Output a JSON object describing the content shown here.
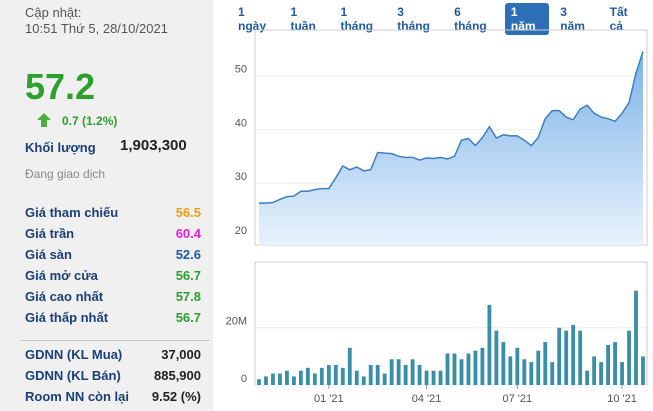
{
  "panel": {
    "updated_label": "Cập nhật:",
    "updated_time": "10:51 Thứ 5, 28/10/2021",
    "price": "57.2",
    "change": "0.7 (1.2%)",
    "volume_label": "Khối lượng",
    "volume": "1,903,300",
    "status": "Đang giao dịch",
    "prices": [
      {
        "label": "Giá tham chiếu",
        "value": "56.5",
        "color": "#f39c12"
      },
      {
        "label": "Giá trần",
        "value": "60.4",
        "color": "#e020e0"
      },
      {
        "label": "Giá sàn",
        "value": "52.6",
        "color": "#1f5aa6"
      },
      {
        "label": "Giá mở cửa",
        "value": "56.7",
        "color": "#2ca02c"
      },
      {
        "label": "Giá cao nhất",
        "value": "57.8",
        "color": "#2ca02c"
      },
      {
        "label": "Giá thấp nhất",
        "value": "56.7",
        "color": "#2ca02c"
      }
    ],
    "foreign": [
      {
        "label": "GDNN (KL Mua)",
        "value": "37,000"
      },
      {
        "label": "GDNN (KL Bán)",
        "value": "885,900"
      },
      {
        "label": "Room NN còn lại",
        "value": "9.52 (%)"
      }
    ]
  },
  "ranges": {
    "buttons": [
      "1 ngày",
      "1 tuần",
      "1 tháng",
      "3 tháng",
      "6 tháng",
      "1 năm",
      "3 năm",
      "Tất cả"
    ],
    "active": 5
  },
  "chart_data": [
    {
      "type": "area",
      "color": "#3d7fc1",
      "ylim": [
        18.5,
        58.5
      ],
      "yticks": [
        20,
        30,
        40,
        50
      ],
      "values": [
        26.3,
        26.3,
        26.4,
        27,
        27.5,
        27.6,
        28.5,
        28.5,
        28.8,
        29,
        29,
        31,
        33.2,
        32.5,
        33,
        32.3,
        32.5,
        35.7,
        35.6,
        35.5,
        35,
        34.8,
        34.8,
        34.3,
        34.7,
        34.6,
        34.8,
        34.5,
        35,
        38,
        38.3,
        37,
        38.5,
        40.5,
        38.4,
        39,
        38.8,
        38.8,
        38,
        37,
        38.5,
        42,
        43.5,
        43.5,
        42.3,
        41.8,
        43.8,
        44.5,
        43,
        42.3,
        42,
        41.5,
        43,
        45,
        50.5,
        54.5
      ]
    },
    {
      "type": "bar",
      "color": "#3a8fa8",
      "ylim": [
        0,
        43
      ],
      "yticks": [
        0,
        {
          "value": 20,
          "label": "20M"
        }
      ],
      "categories": [
        null,
        null,
        null,
        null,
        null,
        null,
        null,
        null,
        null,
        null,
        "01 '21",
        null,
        null,
        null,
        null,
        null,
        null,
        null,
        null,
        null,
        null,
        null,
        null,
        null,
        "04 '21",
        null,
        null,
        null,
        null,
        null,
        null,
        null,
        null,
        null,
        null,
        null,
        null,
        "07 '21",
        null,
        null,
        null,
        null,
        null,
        null,
        null,
        null,
        null,
        null,
        null,
        null,
        null,
        null,
        "10 '21",
        null,
        null,
        null
      ],
      "values": [
        2,
        3,
        4,
        4,
        5,
        3,
        5,
        6,
        4,
        6,
        7,
        7,
        6,
        13,
        5,
        3,
        7,
        7,
        4,
        9,
        9,
        7,
        9,
        7,
        5,
        5,
        5,
        11,
        11,
        9,
        11,
        12,
        13,
        28,
        19,
        15,
        10,
        13,
        9,
        8,
        12,
        15,
        8,
        20,
        19,
        21,
        19,
        5,
        10,
        8,
        14,
        15,
        8,
        19,
        33,
        10
      ]
    }
  ]
}
